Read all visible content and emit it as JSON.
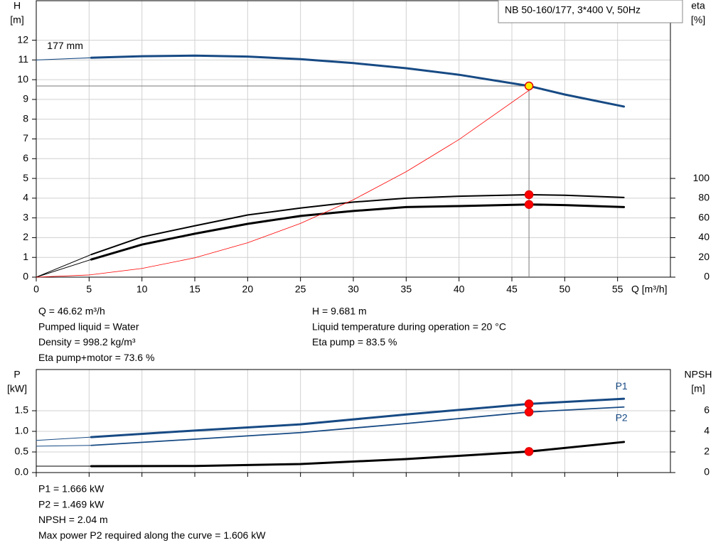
{
  "chart_data": [
    {
      "type": "line",
      "title": "NB 50-160/177, 3*400 V, 50Hz",
      "y_label": "H",
      "y_unit": "[m]",
      "y2_label": "eta",
      "y2_unit": "[%]",
      "x_label": "Q [m³/h]",
      "xlim": [
        0,
        60
      ],
      "xticks": [
        0,
        5,
        10,
        15,
        20,
        25,
        30,
        35,
        40,
        45,
        50,
        55
      ],
      "ylim": [
        0,
        14
      ],
      "yticks": [
        0,
        1,
        2,
        3,
        4,
        5,
        6,
        7,
        8,
        9,
        10,
        11,
        12
      ],
      "y2lim": [
        0,
        280
      ],
      "y2ticks": [
        0,
        20,
        40,
        60,
        80,
        100
      ],
      "grid": true,
      "series": [
        {
          "name": "177 mm",
          "color": "#174a84",
          "line_width": 3,
          "x": [
            5.2,
            10,
            15,
            20,
            25,
            30,
            35,
            40,
            46.62,
            50,
            55.6
          ],
          "values": [
            11.11,
            11.19,
            11.22,
            11.17,
            11.04,
            10.84,
            10.58,
            10.25,
            9.681,
            9.25,
            8.64
          ]
        },
        {
          "color": "#174a84",
          "line_width": 1,
          "x": [
            0,
            5.2
          ],
          "values": [
            11.0,
            11.11
          ]
        },
        {
          "color": "#000000",
          "line_width": 2,
          "axis": "y2",
          "x": [
            5.2,
            10,
            15,
            20,
            25,
            30,
            35,
            40,
            46.62,
            50,
            55.6
          ],
          "values": [
            22.9,
            40.7,
            52,
            63,
            70,
            76,
            80,
            82,
            83.5,
            83,
            80.7
          ]
        },
        {
          "color": "#000000",
          "line_width": 1,
          "axis": "y2",
          "x": [
            0,
            5.2
          ],
          "values": [
            0,
            22.9
          ]
        },
        {
          "color": "#000000",
          "line_width": 3,
          "axis": "y2",
          "x": [
            5.2,
            10,
            15,
            20,
            25,
            30,
            35,
            40,
            46.62,
            50,
            55.6
          ],
          "values": [
            17.9,
            33,
            44,
            54,
            62,
            67,
            71,
            72,
            73.6,
            73,
            71
          ]
        },
        {
          "color": "#000000",
          "line_width": 1,
          "axis": "y2",
          "x": [
            0,
            5.2
          ],
          "values": [
            0,
            17.9
          ]
        },
        {
          "color": "#ff0000",
          "line_width": 0.8,
          "x": [
            0,
            5,
            10,
            15,
            20,
            25,
            30,
            35,
            40,
            46.62
          ],
          "values": [
            0,
            0.11,
            0.44,
            0.98,
            1.74,
            2.72,
            3.92,
            5.34,
            6.97,
            9.46
          ]
        }
      ],
      "duty_point": {
        "x": 46.62,
        "y": 9.681
      },
      "points": [
        {
          "x": 46.62,
          "y": 9.681,
          "color": "#ffee00"
        },
        {
          "x": 46.62,
          "y": 83.5,
          "axis": "y2",
          "color": "#ff0000"
        },
        {
          "x": 46.62,
          "y": 73.6,
          "axis": "y2",
          "color": "#ff0000"
        }
      ],
      "notes": [
        [
          "Q = 46.62 m³/h",
          "Pumped liquid = Water",
          "Density = 998.2 kg/m³",
          "Eta pump+motor = 73.6 %"
        ],
        [
          "H = 9.681 m",
          "Liquid temperature during operation = 20 °C",
          "Eta pump = 83.5 %"
        ]
      ]
    },
    {
      "type": "line",
      "y_label": "P",
      "y_unit": "[kW]",
      "y2_label": "NPSH",
      "y2_unit": "[m]",
      "xlim": [
        0,
        60
      ],
      "xticks": [
        0,
        5,
        10,
        15,
        20,
        25,
        30,
        35,
        40,
        45,
        50,
        55
      ],
      "ylim": [
        0,
        2.5
      ],
      "yticks": [
        {
          "value": 0,
          "label": "0.0"
        },
        0.5,
        {
          "value": 1,
          "label": "1.0"
        },
        1.5
      ],
      "y2lim": [
        0,
        10
      ],
      "y2ticks": [
        0,
        2,
        4,
        6
      ],
      "grid": true,
      "series": [
        {
          "name": "P1",
          "color": "#174a84",
          "line_width": 3,
          "x": [
            5.2,
            15,
            25,
            35,
            46.62,
            55.6
          ],
          "values": [
            0.86,
            1.02,
            1.17,
            1.41,
            1.666,
            1.79
          ]
        },
        {
          "color": "#174a84",
          "line_width": 1,
          "x": [
            0,
            5.2
          ],
          "values": [
            0.78,
            0.86
          ]
        },
        {
          "name": "P2",
          "color": "#174a84",
          "line_width": 1.8,
          "x": [
            5.2,
            15,
            25,
            35,
            46.62,
            55.6
          ],
          "values": [
            0.66,
            0.81,
            0.97,
            1.19,
            1.469,
            1.59
          ]
        },
        {
          "color": "#174a84",
          "line_width": 1,
          "x": [
            0,
            5.2
          ],
          "values": [
            0.64,
            0.66
          ]
        },
        {
          "color": "#000000",
          "line_width": 3,
          "axis": "y2",
          "x": [
            5.2,
            15,
            25,
            35,
            46.62,
            55.6
          ],
          "values": [
            0.62,
            0.64,
            0.83,
            1.31,
            2.04,
            2.97
          ]
        },
        {
          "color": "#000000",
          "line_width": 1,
          "axis": "y2",
          "x": [
            0,
            5.2
          ],
          "values": [
            0.62,
            0.62
          ]
        }
      ],
      "points": [
        {
          "x": 46.62,
          "y": 1.666,
          "color": "#ff0000"
        },
        {
          "x": 46.62,
          "y": 1.469,
          "color": "#ff0000"
        },
        {
          "x": 46.62,
          "y": 2.04,
          "axis": "y2",
          "color": "#ff0000"
        }
      ],
      "notes": [
        [
          "P1 = 1.666 kW",
          "P2 = 1.469 kW",
          "NPSH = 2.04 m",
          "Max power P2 required along the curve = 1.606 kW"
        ]
      ]
    }
  ]
}
